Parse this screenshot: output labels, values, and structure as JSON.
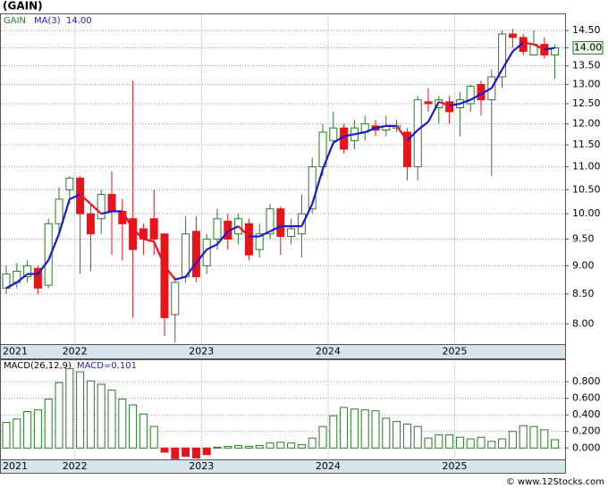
{
  "chart_data": [
    {
      "type": "candlestick",
      "title": "(GAIN)",
      "name": "GAIN",
      "up_color": "#2a7a2a",
      "down_color": "#e8141c",
      "categories": [
        "2021",
        null,
        null,
        null,
        null,
        null,
        null,
        "2022",
        null,
        null,
        null,
        null,
        null,
        null,
        null,
        null,
        null,
        null,
        null,
        "2023",
        null,
        null,
        null,
        null,
        null,
        null,
        null,
        null,
        null,
        null,
        null,
        "2024",
        null,
        null,
        null,
        null,
        null,
        null,
        null,
        null,
        null,
        null,
        null,
        "2025",
        null,
        null,
        null,
        null,
        null,
        null,
        null,
        null,
        null
      ],
      "open": [
        8.6,
        8.7,
        8.8,
        8.95,
        8.65,
        9.8,
        10.5,
        10.75,
        10.0,
        9.9,
        10.4,
        10.05,
        9.9,
        9.7,
        9.9,
        9.6,
        8.15,
        8.8,
        9.65,
        9.0,
        9.5,
        9.85,
        9.6,
        9.8,
        9.3,
        9.6,
        10.1,
        9.55,
        9.6,
        10.1,
        11.0,
        11.6,
        11.9,
        11.6,
        11.8,
        11.95,
        11.85,
        11.9,
        11.8,
        11.0,
        12.55,
        12.4,
        12.55,
        12.4,
        12.5,
        13.0,
        12.6,
        13.2,
        14.4,
        14.3,
        13.8,
        14.1,
        13.8
      ],
      "high": [
        9.0,
        9.05,
        9.1,
        9.0,
        9.9,
        10.55,
        10.8,
        10.8,
        10.2,
        10.5,
        10.9,
        10.3,
        13.1,
        9.8,
        10.5,
        9.6,
        8.8,
        9.95,
        9.95,
        9.6,
        10.1,
        10.0,
        10.0,
        9.9,
        9.8,
        10.2,
        10.15,
        9.9,
        10.4,
        11.2,
        12.0,
        12.3,
        12.0,
        12.1,
        12.2,
        12.1,
        12.2,
        12.1,
        11.9,
        12.7,
        12.9,
        12.7,
        12.7,
        12.8,
        13.0,
        13.1,
        13.4,
        14.5,
        14.55,
        14.4,
        14.5,
        14.3,
        14.1
      ],
      "low": [
        8.5,
        8.6,
        8.7,
        8.5,
        8.6,
        9.6,
        10.2,
        8.85,
        8.9,
        9.6,
        9.2,
        9.1,
        8.1,
        9.2,
        9.2,
        7.8,
        7.7,
        8.7,
        8.7,
        8.85,
        9.3,
        9.3,
        9.4,
        9.1,
        9.15,
        9.5,
        9.2,
        9.4,
        9.15,
        10.0,
        10.8,
        11.5,
        11.3,
        11.4,
        11.6,
        11.7,
        11.7,
        11.8,
        10.7,
        10.7,
        12.3,
        12.0,
        12.0,
        11.7,
        12.3,
        12.2,
        10.8,
        12.9,
        14.0,
        13.8,
        13.8,
        13.7,
        13.15
      ],
      "close": [
        8.85,
        8.9,
        9.0,
        8.6,
        9.8,
        10.3,
        10.75,
        10.0,
        9.6,
        10.4,
        10.05,
        9.8,
        9.3,
        9.5,
        9.5,
        8.1,
        8.7,
        9.6,
        8.8,
        9.5,
        9.9,
        9.5,
        9.9,
        9.2,
        9.6,
        10.1,
        9.55,
        9.7,
        10.0,
        11.0,
        11.8,
        11.9,
        11.4,
        11.9,
        12.0,
        11.85,
        11.95,
        11.95,
        11.0,
        12.6,
        12.5,
        12.6,
        12.3,
        12.6,
        12.95,
        12.6,
        13.2,
        14.4,
        14.3,
        13.9,
        14.1,
        13.8,
        14.0
      ],
      "ma": {
        "name": "MA(3)",
        "rise_color": "#1a1acc",
        "fall_color": "#e8141c",
        "values": [
          8.6,
          8.7,
          8.85,
          8.85,
          9.1,
          9.6,
          10.3,
          10.4,
          10.2,
          10.0,
          10.05,
          10.05,
          9.7,
          9.5,
          9.45,
          9.0,
          8.75,
          8.8,
          9.05,
          9.3,
          9.4,
          9.65,
          9.75,
          9.55,
          9.55,
          9.65,
          9.75,
          9.75,
          9.75,
          10.2,
          10.95,
          11.55,
          11.7,
          11.75,
          11.8,
          11.9,
          11.95,
          11.95,
          11.6,
          11.85,
          12.05,
          12.55,
          12.45,
          12.5,
          12.6,
          12.75,
          12.9,
          13.4,
          13.9,
          14.15,
          14.1,
          13.95,
          14.0
        ]
      },
      "last_close": {
        "value": 14.0,
        "label": "14.00"
      },
      "log_y": true,
      "grid": true,
      "ylim": [
        7.67,
        15.0
      ],
      "yticks": [
        {
          "value": 8,
          "label": "8.00"
        },
        {
          "value": 8.5,
          "label": "8.50"
        },
        {
          "value": 9,
          "label": "9.00"
        },
        {
          "value": 9.5,
          "label": "9.50"
        },
        {
          "value": 10,
          "label": "10.00"
        },
        {
          "value": 10.5,
          "label": "10.50"
        },
        {
          "value": 11,
          "label": "11.00"
        },
        {
          "value": 11.5,
          "label": "11.50"
        },
        {
          "value": 12,
          "label": "12.00"
        },
        {
          "value": 12.5,
          "label": "12.50"
        },
        {
          "value": 13,
          "label": "13.00"
        },
        {
          "value": 13.5,
          "label": "13.50"
        },
        {
          "value": 14,
          "label": "14.00"
        },
        {
          "value": 14.5,
          "label": "14.50"
        }
      ]
    },
    {
      "type": "bar",
      "title": "MACD(26,12,9)",
      "subtitle": "MACD=0.101",
      "pos_color": "#2a7a2a",
      "neg_color": "#e8141c",
      "categories": [
        "2021",
        null,
        null,
        null,
        null,
        null,
        null,
        "2022",
        null,
        null,
        null,
        null,
        null,
        null,
        null,
        null,
        null,
        null,
        null,
        "2023",
        null,
        null,
        null,
        null,
        null,
        null,
        null,
        null,
        null,
        null,
        null,
        "2024",
        null,
        null,
        null,
        null,
        null,
        null,
        null,
        null,
        null,
        null,
        null,
        "2025",
        null,
        null,
        null,
        null,
        null,
        null,
        null,
        null,
        null
      ],
      "values": [
        0.31,
        0.35,
        0.44,
        0.46,
        0.59,
        0.79,
        0.96,
        0.92,
        0.81,
        0.77,
        0.7,
        0.59,
        0.52,
        0.41,
        0.26,
        -0.05,
        -0.13,
        -0.1,
        -0.12,
        -0.08,
        0.01,
        0.02,
        0.03,
        0.02,
        0.03,
        0.06,
        0.07,
        0.06,
        0.04,
        0.12,
        0.26,
        0.39,
        0.49,
        0.47,
        0.46,
        0.45,
        0.36,
        0.32,
        0.29,
        0.26,
        0.12,
        0.16,
        0.16,
        0.13,
        0.11,
        0.13,
        0.08,
        0.11,
        0.2,
        0.27,
        0.26,
        0.22,
        0.1
      ],
      "grid": true,
      "ylim": [
        -0.143,
        1.066
      ],
      "yticks": [
        {
          "value": 0,
          "label": "0.000"
        },
        {
          "value": 0.2,
          "label": "0.200"
        },
        {
          "value": 0.4,
          "label": "0.400"
        },
        {
          "value": 0.6,
          "label": "0.600"
        },
        {
          "value": 0.8,
          "label": "0.800"
        }
      ]
    }
  ],
  "footer": "© www.12Stocks.com"
}
